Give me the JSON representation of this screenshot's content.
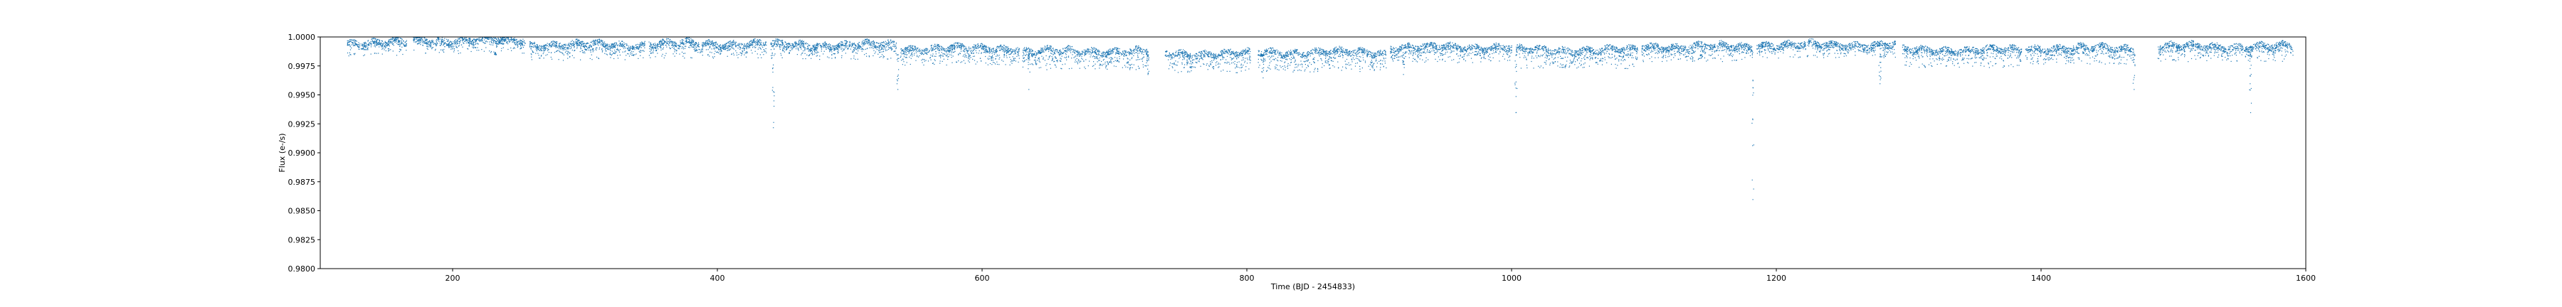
{
  "chart_data": {
    "type": "scatter",
    "title": "",
    "xlabel": "Time (BJD - 2454833)",
    "ylabel": "Flux (e-/s)",
    "xlim": [
      100,
      1600
    ],
    "ylim": [
      0.98,
      1.0
    ],
    "x_ticks": [
      200,
      400,
      600,
      800,
      1000,
      1200,
      1400,
      1600
    ],
    "x_tick_labels": [
      "200",
      "400",
      "600",
      "800",
      "1000",
      "1200",
      "1400",
      "1600"
    ],
    "y_ticks": [
      0.98,
      0.9825,
      0.985,
      0.9875,
      0.99,
      0.9925,
      0.995,
      0.9975,
      1.0
    ],
    "y_tick_labels": [
      "0.9800",
      "0.9825",
      "0.9850",
      "0.9875",
      "0.9900",
      "0.9925",
      "0.9950",
      "0.9975",
      "1.0000"
    ],
    "grid": false,
    "marker_color": "#1f77b4",
    "observing_segments": [
      {
        "start": 120,
        "end": 165,
        "median": 0.99955,
        "depth_low": 0.999
      },
      {
        "start": 170,
        "end": 255,
        "median": 0.99975,
        "depth_low": 0.9992
      },
      {
        "start": 258,
        "end": 345,
        "median": 0.99935,
        "depth_low": 0.9986
      },
      {
        "start": 348,
        "end": 437,
        "median": 0.99945,
        "depth_low": 0.9988
      },
      {
        "start": 440,
        "end": 535,
        "median": 0.99935,
        "depth_low": 0.9987
      },
      {
        "start": 538,
        "end": 628,
        "median": 0.99905,
        "depth_low": 0.9982
      },
      {
        "start": 630,
        "end": 725,
        "median": 0.9988,
        "depth_low": 0.9978
      },
      {
        "start": 738,
        "end": 803,
        "median": 0.9986,
        "depth_low": 0.9975
      },
      {
        "start": 808,
        "end": 905,
        "median": 0.9987,
        "depth_low": 0.9976
      },
      {
        "start": 908,
        "end": 1000,
        "median": 0.99915,
        "depth_low": 0.9984
      },
      {
        "start": 1003,
        "end": 1095,
        "median": 0.9989,
        "depth_low": 0.9979
      },
      {
        "start": 1098,
        "end": 1182,
        "median": 0.9992,
        "depth_low": 0.9985
      },
      {
        "start": 1185,
        "end": 1290,
        "median": 0.99935,
        "depth_low": 0.9988
      },
      {
        "start": 1295,
        "end": 1385,
        "median": 0.9989,
        "depth_low": 0.998
      },
      {
        "start": 1388,
        "end": 1470,
        "median": 0.99905,
        "depth_low": 0.9983
      },
      {
        "start": 1488,
        "end": 1590,
        "median": 0.9992,
        "depth_low": 0.9985
      }
    ],
    "dips": [
      {
        "x": 232,
        "min": 0.9987
      },
      {
        "x": 442,
        "min": 0.9922
      },
      {
        "x": 536,
        "min": 0.9955
      },
      {
        "x": 635,
        "min": 0.9955
      },
      {
        "x": 725,
        "min": 0.9968
      },
      {
        "x": 755,
        "min": 0.997
      },
      {
        "x": 812,
        "min": 0.9965
      },
      {
        "x": 918,
        "min": 0.9968
      },
      {
        "x": 1003,
        "min": 0.9935
      },
      {
        "x": 1143,
        "min": 0.9982
      },
      {
        "x": 1182,
        "min": 0.986
      },
      {
        "x": 1278,
        "min": 0.996
      },
      {
        "x": 1470,
        "min": 0.9955
      },
      {
        "x": 1558,
        "min": 0.9935
      }
    ]
  }
}
